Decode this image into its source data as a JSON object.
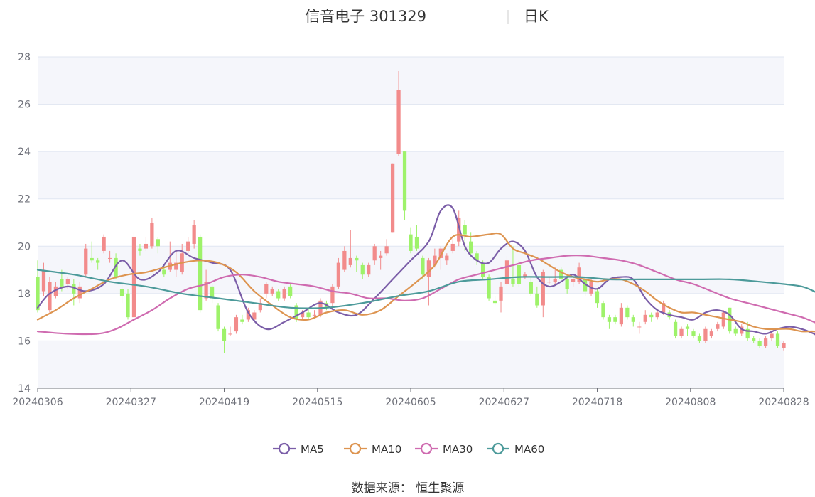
{
  "title": {
    "stock": "信音电子 301329",
    "period": "日K"
  },
  "source": "数据来源： 恒生聚源",
  "colors": {
    "up": "#f28b8b",
    "down": "#9ef26a",
    "ma5": "#7b5ea8",
    "ma10": "#dd9450",
    "ma30": "#cf6bb0",
    "ma60": "#4c9a9a",
    "grid": "#e0e6f1",
    "band": "#f5f6fb",
    "axis": "#6e7079"
  },
  "chart_data": {
    "type": "candlestick",
    "ylim": [
      14,
      28
    ],
    "yticks": [
      14,
      16,
      18,
      20,
      22,
      24,
      26,
      28
    ],
    "xtick_labels": [
      "20240306",
      "20240327",
      "20240419",
      "20240515",
      "20240605",
      "20240627",
      "20240718",
      "20240808",
      "20240828"
    ],
    "legend": [
      {
        "key": "ma5",
        "label": "MA5"
      },
      {
        "key": "ma10",
        "label": "MA10"
      },
      {
        "key": "ma30",
        "label": "MA30"
      },
      {
        "key": "ma60",
        "label": "MA60"
      }
    ],
    "candles": [
      [
        18.7,
        17.3,
        19.4,
        17.2
      ],
      [
        18.1,
        19.0,
        19.3,
        17.9
      ],
      [
        17.3,
        18.5,
        18.7,
        17.2
      ],
      [
        17.9,
        18.3,
        18.5,
        17.8
      ],
      [
        18.6,
        18.3,
        19.0,
        18.1
      ],
      [
        18.4,
        18.6,
        18.7,
        18.2
      ],
      [
        18.4,
        18.0,
        18.6,
        17.5
      ],
      [
        17.8,
        18.3,
        18.5,
        17.6
      ],
      [
        18.8,
        19.9,
        20.1,
        18.7
      ],
      [
        19.5,
        19.4,
        20.2,
        19.3
      ],
      [
        19.4,
        19.3,
        19.5,
        19.0
      ],
      [
        19.8,
        20.4,
        20.5,
        19.7
      ],
      [
        19.5,
        19.5,
        19.8,
        19.3
      ],
      [
        19.5,
        18.7,
        19.7,
        18.6
      ],
      [
        18.2,
        17.9,
        18.5,
        17.6
      ],
      [
        18.0,
        17.0,
        18.2,
        16.9
      ],
      [
        17.0,
        20.4,
        20.6,
        17.0
      ],
      [
        19.9,
        19.8,
        20.1,
        19.6
      ],
      [
        19.9,
        20.1,
        20.4,
        19.8
      ],
      [
        20.0,
        21.0,
        21.2,
        19.9
      ],
      [
        20.3,
        20.0,
        20.4,
        19.7
      ],
      [
        19.0,
        18.8,
        19.2,
        18.7
      ],
      [
        19.0,
        19.3,
        20.2,
        18.9
      ],
      [
        19.0,
        19.3,
        19.8,
        18.7
      ],
      [
        18.9,
        19.7,
        20.1,
        18.8
      ],
      [
        19.8,
        20.2,
        20.4,
        19.7
      ],
      [
        20.1,
        20.9,
        21.1,
        19.9
      ],
      [
        20.4,
        17.3,
        20.5,
        17.2
      ],
      [
        17.8,
        18.5,
        19.0,
        17.7
      ],
      [
        18.3,
        17.8,
        18.4,
        17.6
      ],
      [
        17.5,
        16.5,
        17.6,
        16.4
      ],
      [
        16.5,
        16.0,
        16.6,
        15.5
      ],
      [
        16.3,
        16.3,
        16.6,
        16.2
      ],
      [
        16.4,
        17.0,
        17.1,
        16.3
      ],
      [
        16.9,
        16.8,
        17.1,
        16.7
      ],
      [
        16.9,
        17.3,
        17.4,
        16.8
      ],
      [
        16.9,
        17.2,
        17.3,
        16.8
      ],
      [
        17.3,
        17.6,
        17.8,
        17.2
      ],
      [
        18.0,
        18.4,
        18.5,
        17.8
      ],
      [
        18.0,
        18.2,
        18.3,
        17.9
      ],
      [
        18.1,
        17.8,
        18.2,
        17.7
      ],
      [
        17.8,
        18.2,
        18.3,
        17.7
      ],
      [
        18.3,
        17.9,
        18.4,
        17.8
      ],
      [
        17.5,
        16.9,
        17.6,
        16.8
      ],
      [
        17.0,
        17.2,
        17.3,
        16.9
      ],
      [
        17.2,
        17.0,
        17.4,
        16.9
      ],
      [
        17.1,
        17.1,
        17.3,
        17.0
      ],
      [
        17.1,
        17.7,
        17.8,
        17.0
      ],
      [
        17.6,
        17.4,
        17.7,
        17.3
      ],
      [
        17.6,
        18.3,
        18.4,
        17.4
      ],
      [
        18.3,
        19.3,
        19.5,
        18.2
      ],
      [
        19.0,
        19.8,
        20.0,
        18.9
      ],
      [
        19.2,
        19.5,
        20.7,
        19.1
      ],
      [
        19.5,
        19.4,
        19.6,
        18.9
      ],
      [
        19.2,
        18.8,
        19.3,
        18.6
      ],
      [
        18.8,
        19.2,
        19.3,
        18.7
      ],
      [
        19.4,
        20.0,
        20.1,
        19.2
      ],
      [
        19.5,
        19.6,
        19.8,
        19.0
      ],
      [
        19.7,
        20.0,
        20.3,
        19.6
      ],
      [
        20.6,
        23.5,
        23.5,
        20.6
      ],
      [
        23.9,
        26.6,
        27.4,
        23.8
      ],
      [
        24.0,
        21.5,
        24.0,
        21.1
      ],
      [
        20.5,
        19.8,
        20.8,
        19.7
      ],
      [
        20.4,
        19.9,
        20.9,
        19.8
      ],
      [
        19.5,
        18.8,
        19.6,
        18.6
      ],
      [
        18.7,
        19.4,
        19.5,
        17.5
      ],
      [
        19.2,
        19.6,
        19.9,
        19.1
      ],
      [
        19.5,
        19.9,
        20.0,
        19.0
      ],
      [
        19.4,
        19.6,
        19.7,
        19.2
      ],
      [
        19.8,
        20.1,
        20.3,
        19.7
      ],
      [
        20.2,
        21.2,
        21.5,
        20.0
      ],
      [
        20.9,
        20.5,
        21.1,
        19.8
      ],
      [
        20.2,
        19.7,
        20.6,
        19.6
      ],
      [
        19.7,
        19.4,
        19.8,
        19.2
      ],
      [
        19.3,
        18.7,
        19.4,
        18.6
      ],
      [
        18.7,
        17.8,
        18.8,
        17.7
      ],
      [
        17.7,
        17.6,
        17.9,
        17.5
      ],
      [
        17.7,
        18.3,
        18.5,
        17.2
      ],
      [
        18.4,
        19.4,
        19.6,
        18.3
      ],
      [
        18.6,
        18.4,
        20.0,
        18.3
      ],
      [
        19.2,
        18.4,
        19.4,
        18.3
      ],
      [
        18.7,
        18.8,
        18.9,
        18.6
      ],
      [
        18.5,
        18.0,
        18.7,
        17.9
      ],
      [
        18.0,
        17.5,
        18.3,
        17.4
      ],
      [
        17.5,
        18.9,
        19.0,
        17.0
      ],
      [
        18.5,
        18.5,
        18.7,
        18.4
      ],
      [
        18.5,
        18.6,
        19.1,
        18.4
      ],
      [
        19.0,
        18.6,
        19.1,
        18.5
      ],
      [
        18.6,
        18.2,
        18.8,
        18.0
      ],
      [
        18.5,
        18.6,
        18.7,
        18.3
      ],
      [
        18.5,
        19.1,
        19.3,
        18.4
      ],
      [
        18.6,
        18.1,
        18.7,
        17.9
      ],
      [
        18.0,
        18.5,
        18.6,
        17.9
      ],
      [
        18.1,
        17.6,
        18.2,
        17.4
      ],
      [
        17.6,
        17.0,
        17.7,
        16.9
      ],
      [
        17.0,
        16.8,
        17.1,
        16.5
      ],
      [
        17.0,
        16.8,
        17.1,
        16.7
      ],
      [
        16.7,
        17.4,
        17.6,
        16.6
      ],
      [
        17.4,
        17.0,
        17.5,
        16.9
      ],
      [
        17.0,
        16.8,
        17.1,
        16.6
      ],
      [
        16.6,
        16.6,
        16.8,
        16.3
      ],
      [
        16.8,
        17.1,
        17.3,
        16.7
      ],
      [
        17.1,
        17.0,
        17.2,
        16.8
      ],
      [
        17.0,
        17.2,
        17.3,
        16.9
      ],
      [
        17.2,
        17.6,
        17.7,
        17.1
      ],
      [
        17.2,
        17.0,
        17.3,
        16.9
      ],
      [
        16.8,
        16.2,
        16.9,
        16.1
      ],
      [
        16.2,
        16.5,
        16.6,
        16.1
      ],
      [
        16.6,
        16.5,
        16.7,
        16.2
      ],
      [
        16.4,
        16.2,
        16.5,
        16.1
      ],
      [
        16.2,
        16.0,
        16.3,
        15.9
      ],
      [
        16.0,
        16.5,
        16.6,
        15.9
      ],
      [
        16.2,
        16.4,
        16.5,
        16.1
      ],
      [
        16.5,
        16.7,
        16.8,
        16.4
      ],
      [
        16.6,
        17.2,
        17.3,
        16.5
      ],
      [
        17.4,
        16.4,
        17.4,
        16.3
      ],
      [
        16.5,
        16.3,
        16.6,
        16.2
      ],
      [
        16.3,
        16.6,
        16.7,
        16.2
      ],
      [
        16.5,
        16.1,
        16.8,
        16.0
      ],
      [
        16.1,
        16.0,
        16.2,
        15.9
      ],
      [
        16.0,
        15.8,
        16.1,
        15.7
      ],
      [
        15.8,
        16.1,
        16.2,
        15.7
      ],
      [
        16.1,
        16.3,
        16.4,
        16.0
      ],
      [
        16.3,
        15.8,
        16.4,
        15.7
      ],
      [
        15.7,
        15.9,
        16.0,
        15.6
      ]
    ],
    "ma5": [
      [
        0,
        17.4
      ],
      [
        2,
        18.0
      ],
      [
        5,
        18.3
      ],
      [
        8,
        18.1
      ],
      [
        11,
        18.4
      ],
      [
        14,
        19.4
      ],
      [
        17,
        18.6
      ],
      [
        20,
        18.9
      ],
      [
        23,
        19.8
      ],
      [
        26,
        19.5
      ],
      [
        29,
        19.3
      ],
      [
        32,
        19.0
      ],
      [
        35,
        17.2
      ],
      [
        38,
        16.5
      ],
      [
        41,
        16.8
      ],
      [
        44,
        17.2
      ],
      [
        47,
        17.6
      ],
      [
        50,
        17.2
      ],
      [
        53,
        17.1
      ],
      [
        56,
        17.8
      ],
      [
        59,
        18.6
      ],
      [
        62,
        19.4
      ],
      [
        65,
        20.2
      ],
      [
        67,
        21.5
      ],
      [
        69,
        21.6
      ],
      [
        71,
        20.0
      ],
      [
        73,
        19.4
      ],
      [
        75,
        19.3
      ],
      [
        77,
        19.9
      ],
      [
        79,
        20.2
      ],
      [
        81,
        19.8
      ],
      [
        83,
        18.7
      ],
      [
        85,
        18.3
      ],
      [
        87,
        18.5
      ],
      [
        89,
        18.8
      ],
      [
        91,
        18.4
      ],
      [
        93,
        18.2
      ],
      [
        95,
        18.6
      ],
      [
        97,
        18.7
      ],
      [
        99,
        18.6
      ],
      [
        101,
        17.8
      ],
      [
        103,
        17.3
      ],
      [
        105,
        17.1
      ],
      [
        107,
        17.0
      ],
      [
        109,
        16.9
      ],
      [
        111,
        17.2
      ],
      [
        113,
        17.3
      ],
      [
        115,
        17.1
      ],
      [
        117,
        16.5
      ],
      [
        119,
        16.4
      ],
      [
        121,
        16.3
      ],
      [
        123,
        16.5
      ],
      [
        125,
        16.6
      ],
      [
        127,
        16.5
      ],
      [
        129,
        16.3
      ],
      [
        131,
        16.0
      ]
    ],
    "ma10": [
      [
        0,
        16.9
      ],
      [
        3,
        17.3
      ],
      [
        6,
        17.8
      ],
      [
        9,
        18.2
      ],
      [
        12,
        18.6
      ],
      [
        15,
        18.8
      ],
      [
        18,
        18.9
      ],
      [
        21,
        19.1
      ],
      [
        24,
        19.3
      ],
      [
        27,
        19.4
      ],
      [
        30,
        19.3
      ],
      [
        33,
        18.9
      ],
      [
        36,
        18.1
      ],
      [
        39,
        17.5
      ],
      [
        42,
        17.0
      ],
      [
        45,
        16.9
      ],
      [
        48,
        17.2
      ],
      [
        51,
        17.3
      ],
      [
        54,
        17.1
      ],
      [
        57,
        17.3
      ],
      [
        60,
        17.9
      ],
      [
        63,
        18.5
      ],
      [
        66,
        19.2
      ],
      [
        69,
        20.4
      ],
      [
        72,
        20.4
      ],
      [
        75,
        20.5
      ],
      [
        77,
        20.5
      ],
      [
        79,
        19.9
      ],
      [
        81,
        19.7
      ],
      [
        83,
        19.5
      ],
      [
        85,
        19.2
      ],
      [
        87,
        18.9
      ],
      [
        89,
        18.7
      ],
      [
        91,
        18.6
      ],
      [
        93,
        18.5
      ],
      [
        95,
        18.6
      ],
      [
        97,
        18.6
      ],
      [
        99,
        18.4
      ],
      [
        101,
        18.1
      ],
      [
        103,
        17.7
      ],
      [
        105,
        17.4
      ],
      [
        107,
        17.2
      ],
      [
        109,
        17.2
      ],
      [
        111,
        17.1
      ],
      [
        113,
        17.0
      ],
      [
        115,
        16.9
      ],
      [
        117,
        16.8
      ],
      [
        119,
        16.6
      ],
      [
        121,
        16.5
      ],
      [
        123,
        16.5
      ],
      [
        125,
        16.5
      ],
      [
        127,
        16.4
      ],
      [
        129,
        16.4
      ],
      [
        131,
        16.3
      ]
    ],
    "ma30": [
      [
        0,
        16.4
      ],
      [
        5,
        16.3
      ],
      [
        10,
        16.3
      ],
      [
        13,
        16.5
      ],
      [
        16,
        16.9
      ],
      [
        19,
        17.3
      ],
      [
        22,
        17.8
      ],
      [
        25,
        18.2
      ],
      [
        28,
        18.4
      ],
      [
        31,
        18.7
      ],
      [
        34,
        18.8
      ],
      [
        37,
        18.7
      ],
      [
        40,
        18.5
      ],
      [
        43,
        18.4
      ],
      [
        46,
        18.3
      ],
      [
        49,
        18.1
      ],
      [
        52,
        18.0
      ],
      [
        55,
        17.8
      ],
      [
        58,
        17.8
      ],
      [
        61,
        17.7
      ],
      [
        64,
        17.8
      ],
      [
        67,
        18.2
      ],
      [
        70,
        18.6
      ],
      [
        73,
        18.8
      ],
      [
        76,
        19.0
      ],
      [
        79,
        19.2
      ],
      [
        82,
        19.4
      ],
      [
        85,
        19.5
      ],
      [
        88,
        19.6
      ],
      [
        91,
        19.6
      ],
      [
        94,
        19.5
      ],
      [
        97,
        19.4
      ],
      [
        100,
        19.2
      ],
      [
        103,
        18.9
      ],
      [
        106,
        18.6
      ],
      [
        109,
        18.4
      ],
      [
        112,
        18.1
      ],
      [
        115,
        17.8
      ],
      [
        118,
        17.6
      ],
      [
        121,
        17.4
      ],
      [
        124,
        17.2
      ],
      [
        127,
        17.0
      ],
      [
        129,
        16.8
      ],
      [
        131,
        16.6
      ]
    ],
    "ma60": [
      [
        0,
        19.0
      ],
      [
        6,
        18.8
      ],
      [
        12,
        18.5
      ],
      [
        18,
        18.3
      ],
      [
        24,
        18.0
      ],
      [
        30,
        17.8
      ],
      [
        36,
        17.6
      ],
      [
        42,
        17.4
      ],
      [
        48,
        17.4
      ],
      [
        54,
        17.6
      ],
      [
        60,
        17.9
      ],
      [
        65,
        18.1
      ],
      [
        70,
        18.5
      ],
      [
        75,
        18.6
      ],
      [
        80,
        18.7
      ],
      [
        85,
        18.7
      ],
      [
        90,
        18.7
      ],
      [
        95,
        18.6
      ],
      [
        100,
        18.6
      ],
      [
        105,
        18.6
      ],
      [
        110,
        18.6
      ],
      [
        115,
        18.6
      ],
      [
        120,
        18.5
      ],
      [
        124,
        18.4
      ],
      [
        127,
        18.3
      ],
      [
        129,
        18.1
      ],
      [
        131,
        17.8
      ]
    ]
  }
}
